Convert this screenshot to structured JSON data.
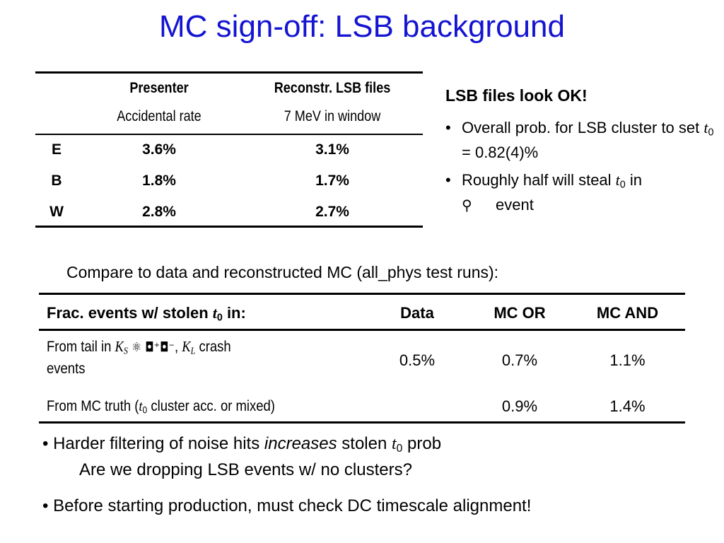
{
  "title": "MC sign-off: LSB background",
  "table1": {
    "col1_header": "Presenter",
    "col1_sub": "Accidental rate",
    "col2_header": "Reconstr. LSB files",
    "col2_sub": "7 MeV in window",
    "rows": [
      {
        "label": "E",
        "presenter": "3.6%",
        "reconstr": "3.1%"
      },
      {
        "label": "B",
        "presenter": "1.8%",
        "reconstr": "1.7%"
      },
      {
        "label": "W",
        "presenter": "2.8%",
        "reconstr": "2.7%"
      }
    ]
  },
  "right_panel": {
    "title": "LSB files look OK!",
    "bullet1_pre": "Overall prob. for LSB cluster to set ",
    "bullet1_var": "t",
    "bullet1_sub": "0",
    "bullet1_post": " = 0.82(4)%",
    "bullet2_pre": "Roughly half will steal ",
    "bullet2_var": "t",
    "bullet2_sub": "0",
    "bullet2_mid": " in",
    "bullet2_symbol": "⚲",
    "bullet2_post": "event"
  },
  "compare_text": "Compare to data and reconstructed MC (all_phys test runs):",
  "table2": {
    "header_label_pre": "Frac. events w/ stolen ",
    "header_label_var": "t",
    "header_label_sub": "0",
    "header_label_post": " in:",
    "col_data": "Data",
    "col_mcor": "MC OR",
    "col_mcand": "MC AND",
    "row1": {
      "label_pre": "From tail in ",
      "label_ks": "K",
      "label_ks_sub": "S",
      "label_glyphs": "⚛ ◘⁺◘⁻",
      "label_comma": ", ",
      "label_kl": "K",
      "label_kl_sub": "L",
      "label_post": " crash",
      "label_line2": "events",
      "data": "0.5%",
      "mcor": "0.7%",
      "mcand": "1.1%"
    },
    "row2": {
      "label_pre": "From MC truth (",
      "label_var": "t",
      "label_sub": "0",
      "label_post": " cluster acc. or mixed)",
      "data": "",
      "mcor": "0.9%",
      "mcand": "1.4%"
    }
  },
  "bullets_bottom": {
    "b1_pre": "Harder filtering of noise hits ",
    "b1_em": "increases",
    "b1_mid": " stolen ",
    "b1_var": "t",
    "b1_sub": "0",
    "b1_post": " prob",
    "b1_line2": "Are we dropping LSB events w/ no clusters?",
    "b2": "Before starting production, must check DC timescale alignment!"
  },
  "colors": {
    "title": "#1414d2",
    "text": "#000000"
  }
}
